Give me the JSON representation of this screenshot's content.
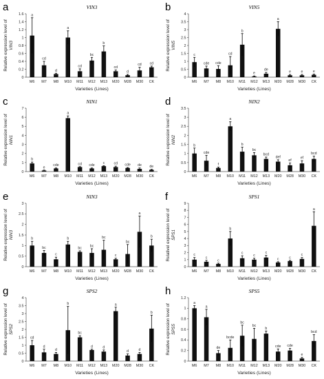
{
  "style": {
    "bar_color": "#111111"
  },
  "chart_data": [
    {
      "panel": "a",
      "type": "bar",
      "title": "VIN3",
      "ylabel_lines": [
        "Relative expression level of",
        "VIN3"
      ],
      "xlabel": "Varieties (Lines)",
      "categories": [
        "M6",
        "M7",
        "M8",
        "M10",
        "M11",
        "M12",
        "M13",
        "M20",
        "M28",
        "M30",
        "CK"
      ],
      "values": [
        1.05,
        0.3,
        0.08,
        1.0,
        0.15,
        0.42,
        0.65,
        0.15,
        0.05,
        0.17,
        0.25
      ],
      "errors": [
        0.45,
        0.1,
        0.02,
        0.17,
        0.06,
        0.08,
        0.14,
        0.03,
        0.02,
        0.08,
        0.03
      ],
      "sig_letters": [
        "a",
        "cd",
        "d",
        "a",
        "cd",
        "bc",
        "b",
        "cd",
        "d",
        "cd",
        "cd"
      ],
      "ylim": [
        0,
        1.6
      ],
      "yticks": [
        0,
        0.2,
        0.4,
        0.6,
        0.8,
        1,
        1.2,
        1.4,
        1.6
      ],
      "grid": false
    },
    {
      "panel": "b",
      "type": "bar",
      "title": "VIN5",
      "ylabel_lines": [
        "Relative expression level of",
        "VIN5"
      ],
      "xlabel": "Varieties (Lines)",
      "categories": [
        "M6",
        "M7",
        "M8",
        "M10",
        "M11",
        "M12",
        "M13",
        "M20",
        "M28",
        "M30",
        "CK"
      ],
      "values": [
        0.95,
        0.55,
        0.52,
        0.75,
        2.05,
        0.05,
        0.22,
        3.05,
        0.12,
        0.12,
        0.15
      ],
      "errors": [
        0.3,
        0.15,
        0.2,
        0.55,
        0.7,
        0.03,
        0.08,
        0.45,
        0.05,
        0.05,
        0.05
      ],
      "sig_letters": [
        "c",
        "cde",
        "cde",
        "cd",
        "b",
        "e",
        "de",
        "a",
        "e",
        "e",
        "e"
      ],
      "ylim": [
        0,
        4
      ],
      "yticks": [
        0,
        0.5,
        1,
        1.5,
        2,
        2.5,
        3,
        3.5,
        4
      ],
      "grid": false
    },
    {
      "panel": "c",
      "type": "bar",
      "title": "NIN1",
      "ylabel_lines": [
        "Relative expression level of",
        "NIN1"
      ],
      "xlabel": "Varieties (Lines)",
      "categories": [
        "M6",
        "M7",
        "M8",
        "M10",
        "M11",
        "M12",
        "M13",
        "M20",
        "M28",
        "M30",
        "CK"
      ],
      "values": [
        0.9,
        0.12,
        0.35,
        5.9,
        0.5,
        0.35,
        0.6,
        0.5,
        0.4,
        0.3,
        0.2
      ],
      "errors": [
        0.15,
        0.05,
        0.05,
        0.25,
        0.05,
        0.05,
        0.05,
        0.1,
        0.05,
        0.1,
        0.05
      ],
      "sig_letters": [
        "b",
        "e",
        "cde",
        "a",
        "cd",
        "cde",
        "c",
        "cd",
        "cde",
        "de",
        "de"
      ],
      "ylim": [
        0,
        7
      ],
      "yticks": [
        0,
        1,
        2,
        3,
        4,
        5,
        6,
        7
      ],
      "grid": false
    },
    {
      "panel": "d",
      "type": "bar",
      "title": "NIN2",
      "ylabel_lines": [
        "Relative expression level of",
        "NIN2"
      ],
      "xlabel": "Varieties (Lines)",
      "categories": [
        "M6",
        "M7",
        "M8",
        "M10",
        "M11",
        "M12",
        "M13",
        "M20",
        "M28",
        "M30",
        "CK"
      ],
      "values": [
        1.0,
        0.6,
        0.2,
        2.5,
        1.1,
        0.9,
        0.7,
        0.55,
        0.35,
        0.45,
        0.7
      ],
      "errors": [
        0.3,
        0.3,
        0.05,
        0.25,
        0.25,
        0.15,
        0.1,
        0.1,
        0.12,
        0.15,
        0.15
      ],
      "sig_letters": [
        "b",
        "cde",
        "f",
        "a",
        "b",
        "bc",
        "bcd",
        "def",
        "ef",
        "ef",
        "bcd"
      ],
      "ylim": [
        0,
        3.5
      ],
      "yticks": [
        0,
        0.5,
        1,
        1.5,
        2,
        2.5,
        3,
        3.5
      ],
      "grid": false
    },
    {
      "panel": "e",
      "type": "bar",
      "title": "NIN3",
      "ylabel_lines": [
        "Relative expression level of",
        "NIN3"
      ],
      "xlabel": "Varieties (Lines)",
      "categories": [
        "M6",
        "M7",
        "M8",
        "M10",
        "M11",
        "M12",
        "M13",
        "M20",
        "M28",
        "M30",
        "CK"
      ],
      "values": [
        1.0,
        0.65,
        0.35,
        1.05,
        0.7,
        0.65,
        0.8,
        0.35,
        0.6,
        1.65,
        1.0
      ],
      "errors": [
        0.2,
        0.12,
        0.1,
        0.15,
        0.05,
        0.2,
        0.45,
        0.05,
        0.45,
        0.75,
        0.3
      ],
      "sig_letters": [
        "b",
        "bc",
        "c",
        "b",
        "bc",
        "bc",
        "bc",
        "c",
        "bc",
        "a",
        "b"
      ],
      "ylim": [
        0,
        3
      ],
      "yticks": [
        0,
        0.5,
        1,
        1.5,
        2,
        2.5,
        3
      ],
      "grid": false
    },
    {
      "panel": "f",
      "type": "bar",
      "title": "SPS1",
      "ylabel_lines": [
        "Relativel expression level of",
        "SPS1"
      ],
      "xlabel": "Varieties (Lines)",
      "categories": [
        "M6",
        "M7",
        "M8",
        "M10",
        "M11",
        "M12",
        "M13",
        "M20",
        "M28",
        "M30",
        "CK"
      ],
      "values": [
        1.0,
        0.7,
        0.4,
        4.0,
        1.2,
        1.0,
        1.3,
        0.6,
        0.8,
        1.1,
        5.8
      ],
      "errors": [
        0.3,
        0.2,
        0.1,
        1.0,
        0.35,
        0.2,
        0.3,
        0.1,
        0.1,
        0.2,
        2.0
      ],
      "sig_letters": [
        "c",
        "c",
        "c",
        "b",
        "c",
        "c",
        "c",
        "c",
        "c",
        "c",
        "a"
      ],
      "ylim": [
        0,
        9
      ],
      "yticks": [
        0,
        1,
        2,
        3,
        4,
        5,
        6,
        7,
        8,
        9
      ],
      "grid": false
    },
    {
      "panel": "g",
      "type": "bar",
      "title": "SPS2",
      "ylabel_lines": [
        "Relative expression level of",
        "SPS2"
      ],
      "xlabel": "Varieties (Lines)",
      "categories": [
        "M6",
        "M7",
        "M8",
        "M10",
        "M11",
        "M12",
        "M13",
        "M20",
        "M28",
        "M30",
        "CK"
      ],
      "values": [
        1.0,
        0.55,
        0.45,
        1.95,
        1.5,
        0.7,
        0.6,
        3.15,
        0.35,
        0.45,
        2.05
      ],
      "errors": [
        0.3,
        0.2,
        0.1,
        1.5,
        0.1,
        0.05,
        0.1,
        0.25,
        0.1,
        0.1,
        0.85
      ],
      "sig_letters": [
        "cd",
        "d",
        "d",
        "b",
        "bc",
        "d",
        "d",
        "a",
        "d",
        "d",
        "b"
      ],
      "ylim": [
        0,
        4
      ],
      "yticks": [
        0,
        0.5,
        1,
        1.5,
        2,
        2.5,
        3,
        3.5,
        4
      ],
      "grid": false
    },
    {
      "panel": "h",
      "type": "bar",
      "title": "SPS5",
      "ylabel_lines": [
        "Relative expression level of",
        "SPS5"
      ],
      "xlabel": "Varieties (Lines)",
      "categories": [
        "M6",
        "M7",
        "M8",
        "M10",
        "M11",
        "M12",
        "M13",
        "M20",
        "M28",
        "M30",
        "CK"
      ],
      "values": [
        1.0,
        0.83,
        0.15,
        0.25,
        0.48,
        0.42,
        0.52,
        0.18,
        0.2,
        0.05,
        0.38
      ],
      "errors": [
        0.05,
        0.15,
        0.05,
        0.15,
        0.2,
        0.2,
        0.05,
        0.05,
        0.04,
        0.02,
        0.12
      ],
      "sig_letters": [
        "a",
        "a",
        "de",
        "bcde",
        "bc",
        "bc",
        "b",
        "cde",
        "cde",
        "e",
        "bcd"
      ],
      "ylim": [
        0,
        1.2
      ],
      "yticks": [
        0,
        0.2,
        0.4,
        0.6,
        0.8,
        1,
        1.2
      ],
      "grid": false
    }
  ]
}
